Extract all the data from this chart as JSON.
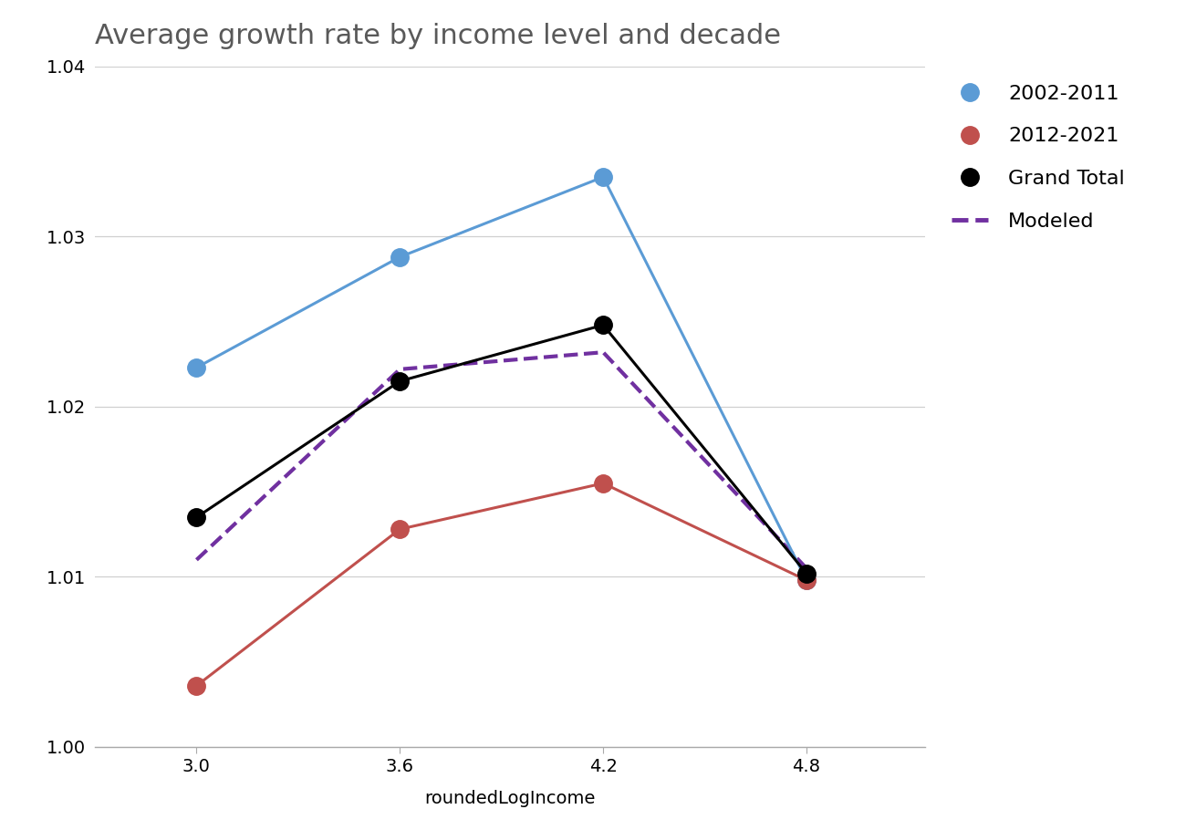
{
  "title": "Average growth rate by income level and decade",
  "xlabel": "roundedLogIncome",
  "x": [
    3.0,
    3.6,
    4.2,
    4.8
  ],
  "series_2002_2011": [
    1.0223,
    1.0288,
    1.0335,
    1.0098
  ],
  "series_2012_2021": [
    1.0036,
    1.0128,
    1.0155,
    1.0098
  ],
  "series_grand_total": [
    1.0135,
    1.0215,
    1.0248,
    1.0102
  ],
  "series_modeled": [
    1.011,
    1.0222,
    1.0232,
    1.0105
  ],
  "color_2002_2011": "#5b9bd5",
  "color_2012_2021": "#c0504d",
  "color_grand_total": "#000000",
  "color_modeled": "#7030a0",
  "ylim": [
    1.0,
    1.04
  ],
  "yticks": [
    1.0,
    1.01,
    1.02,
    1.03,
    1.04
  ],
  "xticks": [
    3.0,
    3.6,
    4.2,
    4.8
  ],
  "title_fontsize": 22,
  "label_fontsize": 14,
  "tick_fontsize": 14,
  "legend_fontsize": 16,
  "marker_size": 14,
  "line_width": 2.2,
  "background_color": "#ffffff",
  "title_color": "#595959"
}
